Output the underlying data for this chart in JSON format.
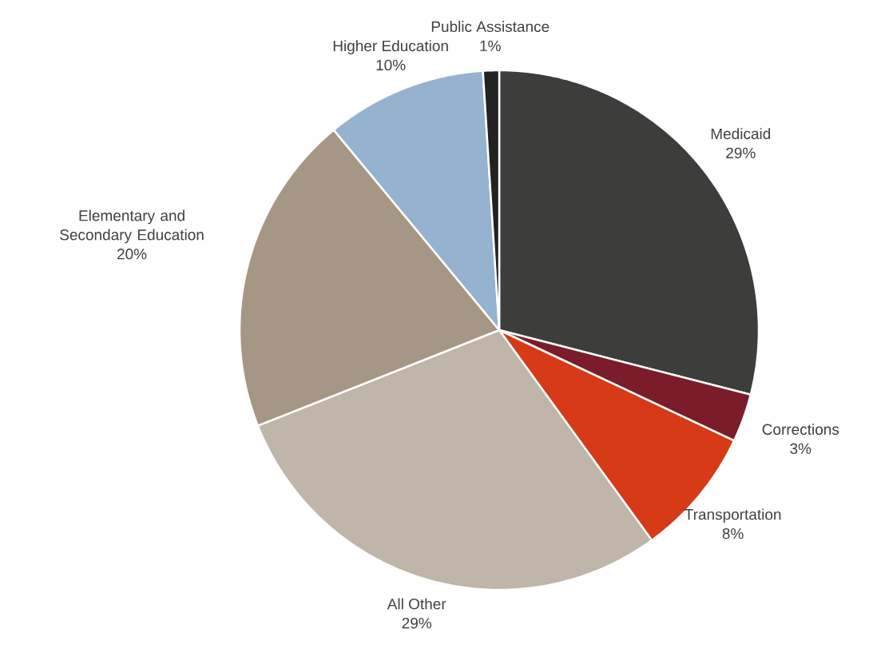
{
  "chart_data": {
    "type": "pie",
    "categories": [
      "Medicaid",
      "Corrections",
      "Transportation",
      "All Other",
      "Elementary and Secondary Education",
      "Higher Education",
      "Public Assistance"
    ],
    "values": [
      29,
      3,
      8,
      29,
      20,
      10,
      1
    ],
    "value_labels": [
      "29%",
      "3%",
      "8%",
      "29%",
      "20%",
      "10%",
      "1%"
    ],
    "colors": [
      "#3d3d3b",
      "#7b1c2a",
      "#d63a16",
      "#bfb5a8",
      "#a69684",
      "#95b3cf",
      "#222222"
    ]
  }
}
